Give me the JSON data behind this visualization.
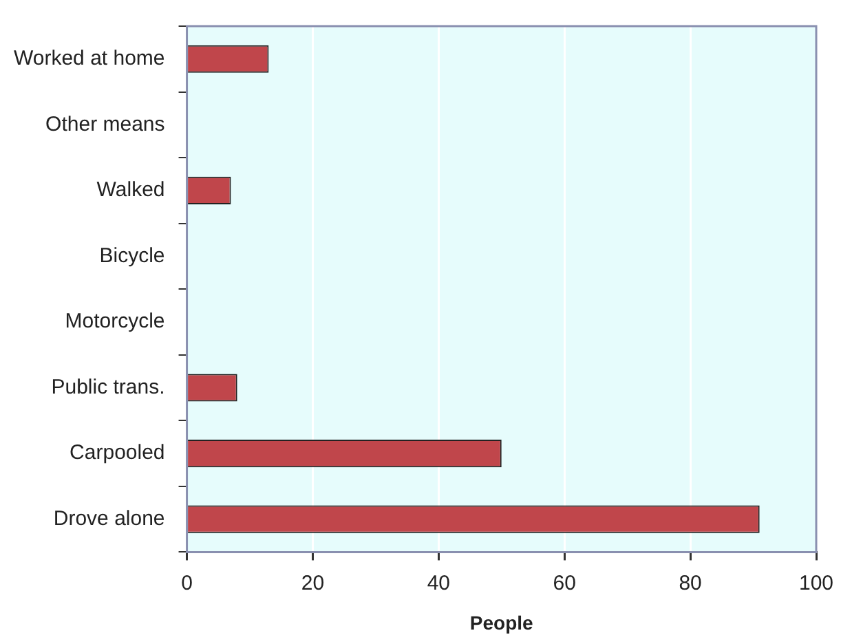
{
  "chart_data": {
    "type": "bar",
    "orientation": "horizontal",
    "xlabel": "People",
    "categories": [
      "Worked at home",
      "Other means",
      "Walked",
      "Bicycle",
      "Motorcycle",
      "Public trans.",
      "Carpooled",
      "Drove alone"
    ],
    "values": [
      13,
      0,
      7,
      0,
      0,
      8,
      50,
      91
    ],
    "color": "#c0464b",
    "xlim": [
      0,
      100
    ],
    "xticks": [
      0,
      20,
      40,
      60,
      80,
      100
    ],
    "grid": "x",
    "legend": false
  }
}
